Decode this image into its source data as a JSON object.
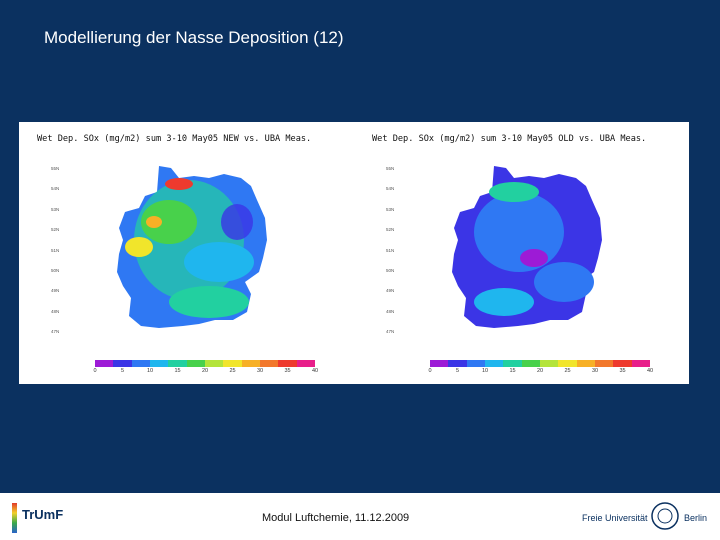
{
  "slide": {
    "title": "Modellierung der Nasse Deposition (12)",
    "footer": "Modul Luftchemie, 11.12.2009"
  },
  "figure": {
    "panels": [
      {
        "title": "Wet Dep. SOx (mg/m2) sum 3-10 May05 NEW vs. UBA Meas.",
        "lat_labels": [
          "55N",
          "54N",
          "53N",
          "52N",
          "51N",
          "50N",
          "49N",
          "48N",
          "47N"
        ],
        "station_values": [
          "28",
          "30",
          "45",
          "56",
          "36",
          "31",
          "44",
          "27",
          "38",
          "30",
          "31",
          "34",
          "12",
          "16",
          "12"
        ]
      },
      {
        "title": "Wet Dep. SOx (mg/m2) sum 3-10 May05 OLD vs. UBA Meas.",
        "lat_labels": [
          "55N",
          "54N",
          "53N",
          "52N",
          "51N",
          "50N",
          "49N",
          "48N",
          "47N"
        ],
        "station_values": [
          "28",
          "30",
          "45",
          "56",
          "36",
          "31",
          "44",
          "27",
          "38",
          "30",
          "31",
          "34",
          "12",
          "16",
          "12"
        ]
      }
    ],
    "colorbar": {
      "labels": [
        "0",
        "5",
        "10",
        "15",
        "20",
        "25",
        "30",
        "35",
        "40"
      ],
      "colors": [
        "#9d1bd6",
        "#3b35e6",
        "#2f78f3",
        "#1fb6ee",
        "#22d0a0",
        "#48d14b",
        "#b4e43a",
        "#f1e52b",
        "#f7b026",
        "#f2782c",
        "#ee3a2e",
        "#e81e8a"
      ]
    }
  },
  "logos": {
    "left": {
      "name": "TrUmF",
      "text": "TrUmF"
    },
    "right": {
      "name": "Freie Universität Berlin",
      "text_left": "Freie Universität",
      "text_right": "Berlin"
    }
  }
}
